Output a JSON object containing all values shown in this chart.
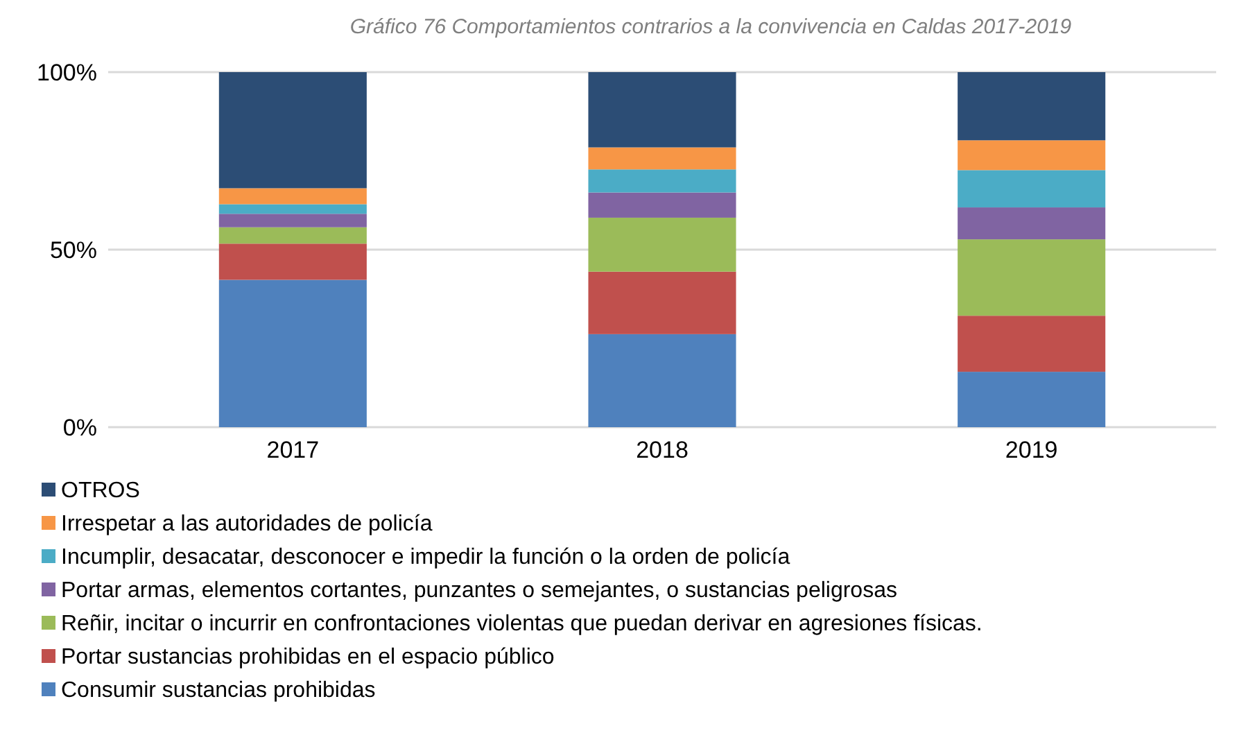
{
  "chart_data": {
    "type": "bar",
    "stacked": true,
    "title": "Gráfico 76 Comportamientos contrarios a la convivencia en Caldas 2017-2019",
    "categories": [
      "2017",
      "2018",
      "2019"
    ],
    "series": [
      {
        "name": "Consumir sustancias prohibidas",
        "color": "#4f81bd",
        "values": [
          41.5,
          26.2,
          15.6
        ]
      },
      {
        "name": "Portar sustancias prohibidas en el espacio público",
        "color": "#c0504d",
        "values": [
          10.2,
          17.6,
          15.8
        ]
      },
      {
        "name": "Reñir, incitar o incurrir en confrontaciones violentas que puedan derivar en agresiones físicas.",
        "color": "#9bbb59",
        "values": [
          4.6,
          15.2,
          21.5
        ]
      },
      {
        "name": "Portar armas, elementos cortantes, punzantes o semejantes, o sustancias peligrosas",
        "color": "#8064a2",
        "values": [
          3.8,
          7.1,
          9.0
        ]
      },
      {
        "name": "Incumplir, desacatar, desconocer e impedir la función o la orden de policía",
        "color": "#4bacc6",
        "values": [
          2.7,
          6.5,
          10.5
        ]
      },
      {
        "name": "Irrespetar a las autoridades de policía",
        "color": "#f79646",
        "values": [
          4.5,
          6.2,
          8.4
        ]
      },
      {
        "name": "OTROS",
        "color": "#2c4d75",
        "values": [
          32.7,
          21.2,
          19.2
        ]
      }
    ],
    "ylim": [
      0,
      100
    ],
    "yticks": [
      {
        "value": 0,
        "label": "0%"
      },
      {
        "value": 50,
        "label": "50%"
      },
      {
        "value": 100,
        "label": "100%"
      }
    ],
    "grid": "y",
    "legend": "bottom"
  }
}
